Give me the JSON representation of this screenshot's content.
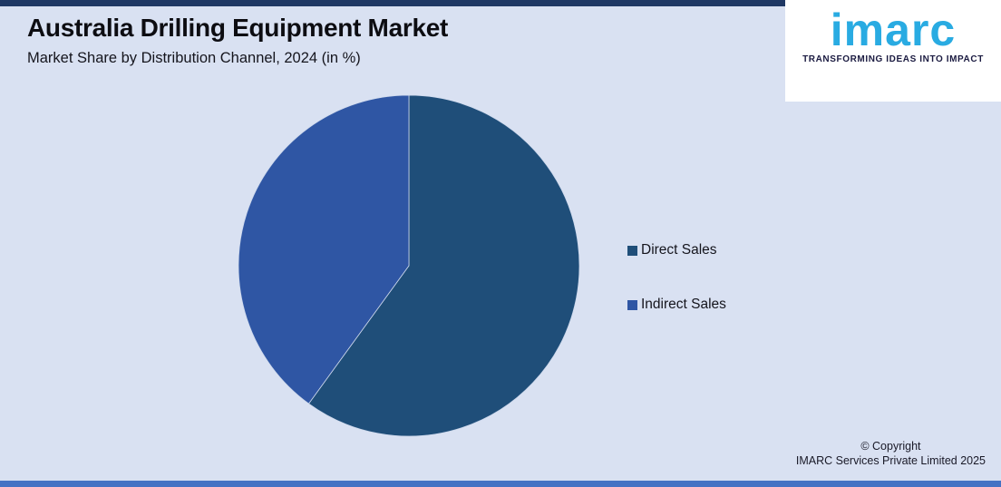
{
  "page": {
    "bg": "#d9e1f2",
    "top_bar_color": "#1f3864",
    "bottom_bar_color": "#4472c4"
  },
  "header": {
    "title": "Australia Drilling Equipment Market",
    "subtitle": "Market Share by Distribution Channel, 2024 (in %)"
  },
  "logo": {
    "brand": "imarc",
    "tagline": "TRANSFORMING IDEAS INTO IMPACT",
    "brand_color": "#29abe2",
    "tagline_color": "#1b1b41",
    "panel_bg": "#ffffff"
  },
  "chart_data": {
    "type": "pie",
    "title": "Australia Drilling Equipment Market",
    "subtitle": "Market Share by Distribution Channel, 2024 (in %)",
    "categories": [
      "Direct Sales",
      "Indirect Sales"
    ],
    "values": [
      60,
      40
    ],
    "unit": "%",
    "colors": [
      "#1f4e79",
      "#2f56a4"
    ],
    "start_angle_deg": 0,
    "direction": "clockwise",
    "legend_position": "right",
    "data_labels": false
  },
  "footer": {
    "copyright_line1": "© Copyright",
    "copyright_line2": "IMARC Services Private Limited 2025"
  }
}
